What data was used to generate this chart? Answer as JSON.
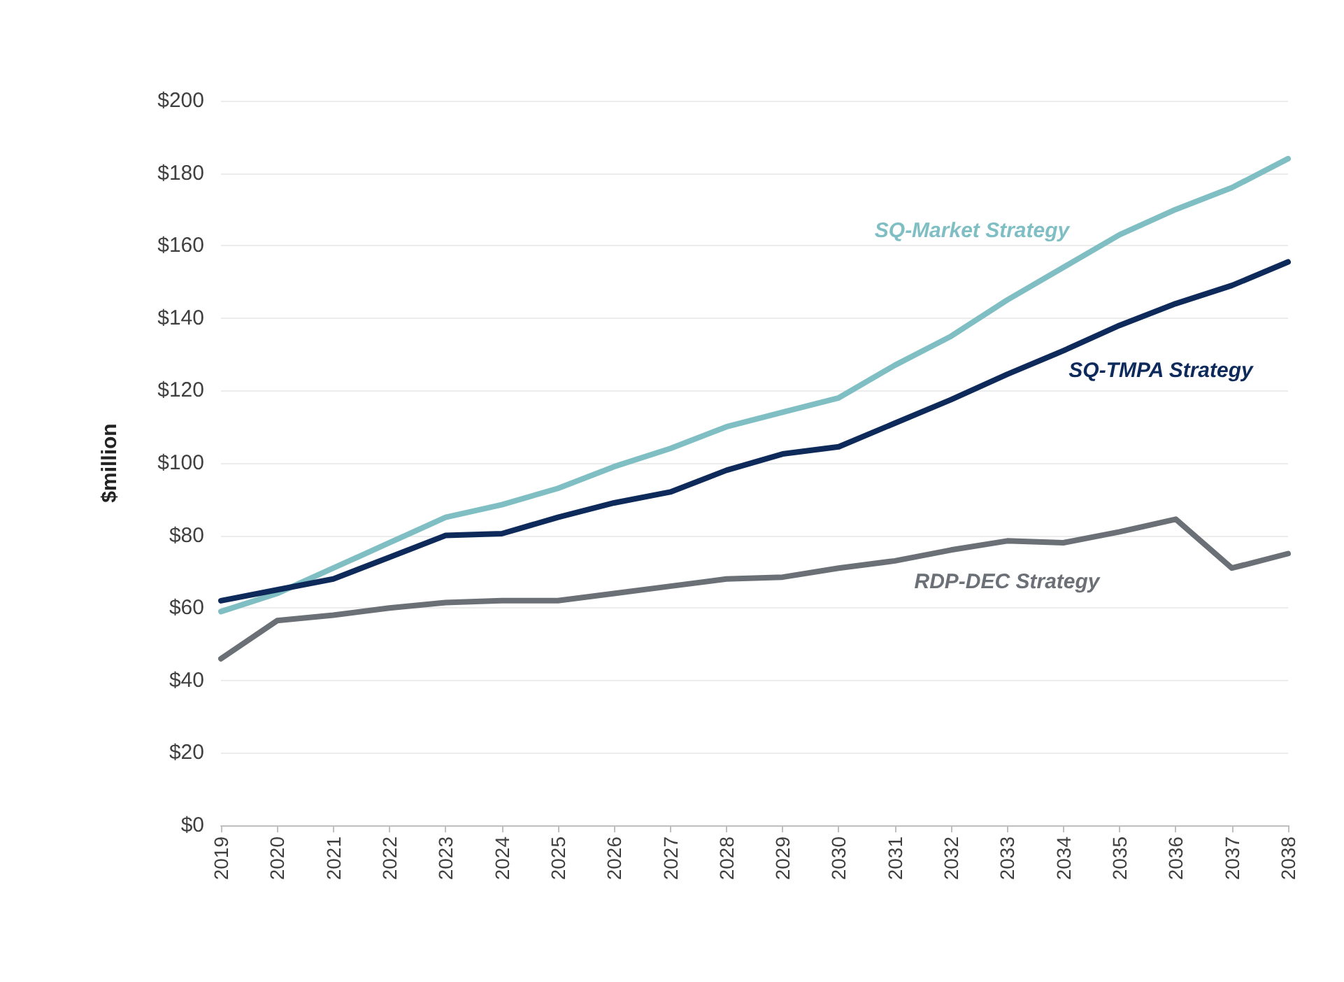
{
  "chart_data": {
    "type": "line",
    "ylabel": "$million",
    "categories": [
      "2019",
      "2020",
      "2021",
      "2022",
      "2023",
      "2024",
      "2025",
      "2026",
      "2027",
      "2028",
      "2029",
      "2030",
      "2031",
      "2032",
      "2033",
      "2034",
      "2035",
      "2036",
      "2037",
      "2038"
    ],
    "ylim": [
      0,
      200
    ],
    "yticks": [
      {
        "value": 0,
        "label": "$0"
      },
      {
        "value": 20,
        "label": "$20"
      },
      {
        "value": 40,
        "label": "$40"
      },
      {
        "value": 60,
        "label": "$60"
      },
      {
        "value": 80,
        "label": "$80"
      },
      {
        "value": 100,
        "label": "$100"
      },
      {
        "value": 120,
        "label": "$120"
      },
      {
        "value": 140,
        "label": "$140"
      },
      {
        "value": 160,
        "label": "$160"
      },
      {
        "value": 180,
        "label": "$180"
      },
      {
        "value": 200,
        "label": "$200"
      }
    ],
    "grid": "y",
    "legend": false,
    "marker": "none",
    "line_style": "solid",
    "series": [
      {
        "name": "SQ-Market Strategy",
        "color": "#7fbfc4",
        "values": [
          59,
          64,
          71,
          78,
          85,
          88.5,
          93,
          99,
          104,
          110,
          114,
          118,
          127,
          135,
          145,
          154,
          163,
          170,
          176,
          184
        ]
      },
      {
        "name": "SQ-TMPA Strategy",
        "color": "#0d2a5a",
        "values": [
          62,
          65,
          68,
          74,
          80,
          80.5,
          85,
          89,
          92,
          98,
          102.5,
          104.5,
          111,
          117.5,
          124.5,
          131,
          138,
          144,
          149,
          155.5
        ]
      },
      {
        "name": "RDP-DEC Strategy",
        "color": "#6b7076",
        "values": [
          46,
          56.5,
          58,
          60,
          61.5,
          62,
          62,
          64,
          66,
          68,
          68.5,
          71,
          73,
          76,
          78.5,
          78,
          81,
          84.5,
          71,
          75
        ]
      }
    ]
  }
}
